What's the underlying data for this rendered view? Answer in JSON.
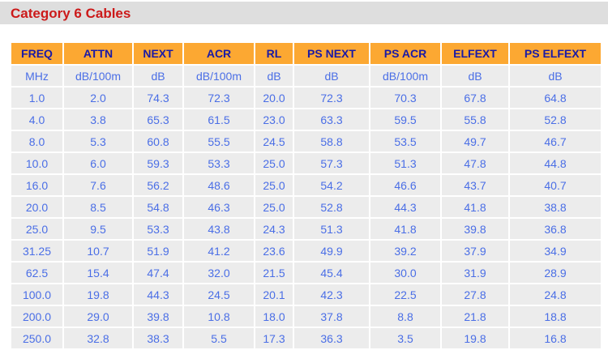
{
  "title": "Category 6 Cables",
  "colors": {
    "title": "#cc1a1a",
    "header_bg": "#fca832",
    "header_text": "#1a1aa6",
    "cell_text": "#4a6ee6",
    "cell_bg": "#ececec"
  },
  "table": {
    "headers": [
      "FREQ",
      "ATTN",
      "NEXT",
      "ACR",
      "RL",
      "PS NEXT",
      "PS ACR",
      "ELFEXT",
      "PS ELFEXT"
    ],
    "units": [
      "MHz",
      "dB/100m",
      "dB",
      "dB/100m",
      "dB",
      "dB",
      "dB/100m",
      "dB",
      "dB"
    ],
    "rows": [
      [
        "1.0",
        "2.0",
        "74.3",
        "72.3",
        "20.0",
        "72.3",
        "70.3",
        "67.8",
        "64.8"
      ],
      [
        "4.0",
        "3.8",
        "65.3",
        "61.5",
        "23.0",
        "63.3",
        "59.5",
        "55.8",
        "52.8"
      ],
      [
        "8.0",
        "5.3",
        "60.8",
        "55.5",
        "24.5",
        "58.8",
        "53.5",
        "49.7",
        "46.7"
      ],
      [
        "10.0",
        "6.0",
        "59.3",
        "53.3",
        "25.0",
        "57.3",
        "51.3",
        "47.8",
        "44.8"
      ],
      [
        "16.0",
        "7.6",
        "56.2",
        "48.6",
        "25.0",
        "54.2",
        "46.6",
        "43.7",
        "40.7"
      ],
      [
        "20.0",
        "8.5",
        "54.8",
        "46.3",
        "25.0",
        "52.8",
        "44.3",
        "41.8",
        "38.8"
      ],
      [
        "25.0",
        "9.5",
        "53.3",
        "43.8",
        "24.3",
        "51.3",
        "41.8",
        "39.8",
        "36.8"
      ],
      [
        "31.25",
        "10.7",
        "51.9",
        "41.2",
        "23.6",
        "49.9",
        "39.2",
        "37.9",
        "34.9"
      ],
      [
        "62.5",
        "15.4",
        "47.4",
        "32.0",
        "21.5",
        "45.4",
        "30.0",
        "31.9",
        "28.9"
      ],
      [
        "100.0",
        "19.8",
        "44.3",
        "24.5",
        "20.1",
        "42.3",
        "22.5",
        "27.8",
        "24.8"
      ],
      [
        "200.0",
        "29.0",
        "39.8",
        "10.8",
        "18.0",
        "37.8",
        "8.8",
        "21.8",
        "18.8"
      ],
      [
        "250.0",
        "32.8",
        "38.3",
        "5.5",
        "17.3",
        "36.3",
        "3.5",
        "19.8",
        "16.8"
      ]
    ]
  }
}
